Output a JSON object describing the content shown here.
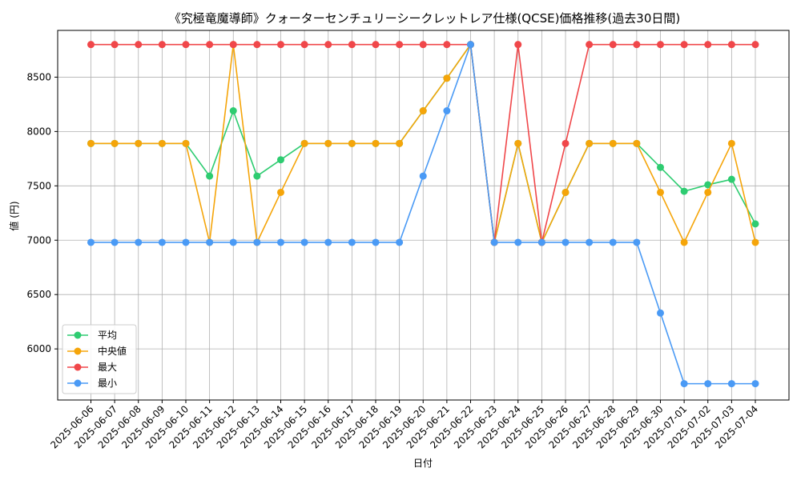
{
  "chart_data": {
    "type": "line",
    "title": "《究極竜魔導師》クォーターセンチュリーシークレットレア仕様(QCSE)価格推移(過去30日間)",
    "xlabel": "日付",
    "ylabel": "値 (円)",
    "ylim": [
      5530,
      8930
    ],
    "yticks": [
      6000,
      6500,
      7000,
      7500,
      8000,
      8500
    ],
    "grid": true,
    "legend_position": "bottom-left",
    "categories": [
      "2025-06-06",
      "2025-06-07",
      "2025-06-08",
      "2025-06-09",
      "2025-06-10",
      "2025-06-11",
      "2025-06-12",
      "2025-06-13",
      "2025-06-14",
      "2025-06-15",
      "2025-06-16",
      "2025-06-17",
      "2025-06-18",
      "2025-06-19",
      "2025-06-20",
      "2025-06-21",
      "2025-06-22",
      "2025-06-23",
      "2025-06-24",
      "2025-06-25",
      "2025-06-26",
      "2025-06-27",
      "2025-06-28",
      "2025-06-29",
      "2025-06-30",
      "2025-07-01",
      "2025-07-02",
      "2025-07-03",
      "2025-07-04"
    ],
    "series": [
      {
        "name": "平均",
        "color": "#2ecc71",
        "values": [
          7890,
          7890,
          7890,
          7890,
          7890,
          7590,
          8190,
          7590,
          7740,
          7890,
          7890,
          7890,
          7890,
          7890,
          8190,
          8490,
          8800,
          6980,
          7890,
          6980,
          7440,
          7890,
          7890,
          7890,
          7670,
          7450,
          7510,
          7560,
          7150
        ]
      },
      {
        "name": "中央値",
        "color": "#f5a50a",
        "values": [
          7890,
          7890,
          7890,
          7890,
          7890,
          6980,
          8800,
          6980,
          7440,
          7890,
          7890,
          7890,
          7890,
          7890,
          8190,
          8490,
          8800,
          6980,
          7890,
          6980,
          7440,
          7890,
          7890,
          7890,
          7440,
          6980,
          7440,
          7890,
          6980
        ]
      },
      {
        "name": "最大",
        "color": "#f0474a",
        "values": [
          8800,
          8800,
          8800,
          8800,
          8800,
          8800,
          8800,
          8800,
          8800,
          8800,
          8800,
          8800,
          8800,
          8800,
          8800,
          8800,
          8800,
          6980,
          8800,
          6980,
          7890,
          8800,
          8800,
          8800,
          8800,
          8800,
          8800,
          8800,
          8800
        ]
      },
      {
        "name": "最小",
        "color": "#4a9af5",
        "values": [
          6980,
          6980,
          6980,
          6980,
          6980,
          6980,
          6980,
          6980,
          6980,
          6980,
          6980,
          6980,
          6980,
          6980,
          7590,
          8190,
          8800,
          6980,
          6980,
          6980,
          6980,
          6980,
          6980,
          6980,
          6330,
          5680,
          5680,
          5680,
          5680
        ]
      }
    ]
  }
}
